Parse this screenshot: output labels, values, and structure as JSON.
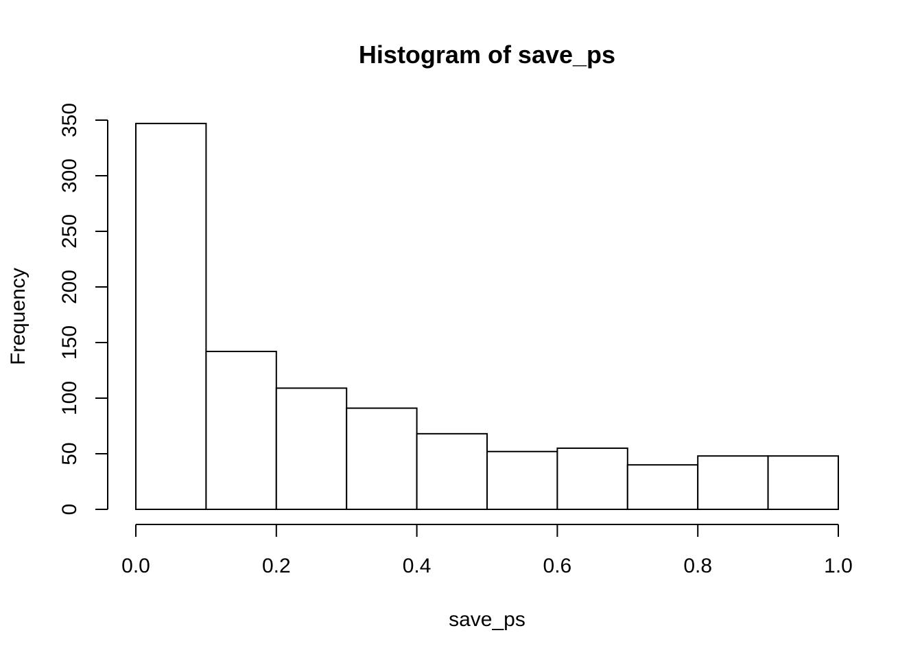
{
  "chart_data": {
    "type": "bar",
    "title": "Histogram of save_ps",
    "xlabel": "save_ps",
    "ylabel": "Frequency",
    "bins": [
      {
        "start": 0.0,
        "end": 0.1,
        "count": 347
      },
      {
        "start": 0.1,
        "end": 0.2,
        "count": 142
      },
      {
        "start": 0.2,
        "end": 0.3,
        "count": 109
      },
      {
        "start": 0.3,
        "end": 0.4,
        "count": 91
      },
      {
        "start": 0.4,
        "end": 0.5,
        "count": 68
      },
      {
        "start": 0.5,
        "end": 0.6,
        "count": 52
      },
      {
        "start": 0.6,
        "end": 0.7,
        "count": 55
      },
      {
        "start": 0.7,
        "end": 0.8,
        "count": 40
      },
      {
        "start": 0.8,
        "end": 0.9,
        "count": 48
      },
      {
        "start": 0.9,
        "end": 1.0,
        "count": 48
      }
    ],
    "xlim": [
      0.0,
      1.0
    ],
    "ylim": [
      0,
      350
    ],
    "x_ticks": [
      0.0,
      0.2,
      0.4,
      0.6,
      0.8,
      1.0
    ],
    "x_tick_labels": [
      "0.0",
      "0.2",
      "0.4",
      "0.6",
      "0.8",
      "1.0"
    ],
    "y_ticks": [
      0,
      50,
      100,
      150,
      200,
      250,
      300,
      350
    ],
    "y_tick_labels": [
      "0",
      "50",
      "100",
      "150",
      "200",
      "250",
      "300",
      "350"
    ],
    "grid": false,
    "colors": {
      "bar_fill": "#ffffff",
      "bar_stroke": "#000000",
      "background": "#ffffff"
    }
  }
}
